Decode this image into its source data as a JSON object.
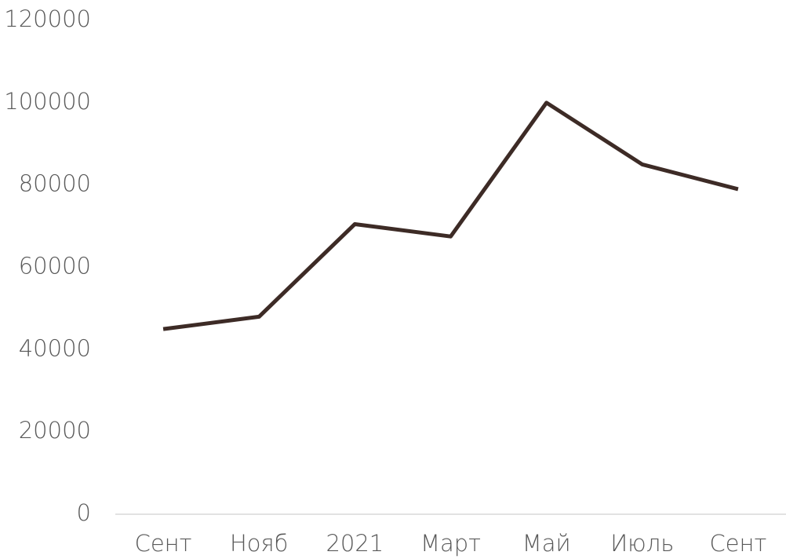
{
  "chart_data": {
    "type": "line",
    "categories": [
      "Сент",
      "Нояб",
      "2021",
      "Март",
      "Май",
      "Июль",
      "Сент"
    ],
    "series": [
      {
        "name": null,
        "color": "#3d2b26",
        "values": [
          45000,
          48000,
          70500,
          67500,
          100000,
          85000,
          79000
        ]
      }
    ],
    "ylim": [
      0,
      120000
    ],
    "yticks": [
      0,
      20000,
      40000,
      60000,
      80000,
      100000,
      120000
    ],
    "grid": false
  }
}
